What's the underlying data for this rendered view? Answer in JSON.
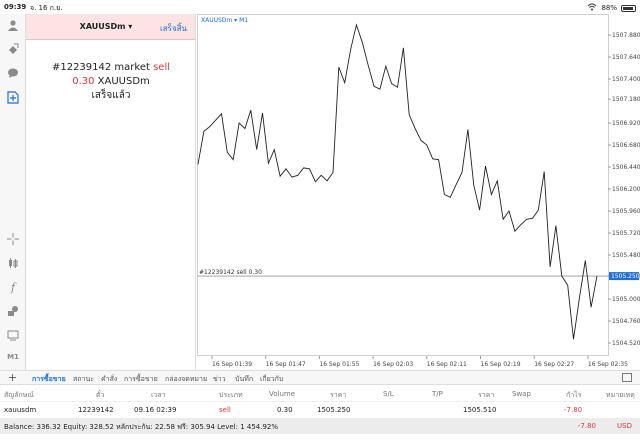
{
  "status_bar": {
    "time": "09:39",
    "date": "จ. 16 ก.ย.",
    "battery": "88%"
  },
  "colors": {
    "accent": "#1f6fd6",
    "sell": "#d23a3a",
    "chart_line": "#222222",
    "order_line": "#999999"
  },
  "left_toolbar": {
    "top_icons": [
      "user-icon",
      "account-icon",
      "chat-icon",
      "new-order-icon"
    ],
    "bottom_icons": [
      "crosshair-icon",
      "candles-icon",
      "indicators-icon",
      "objects-icon",
      "chart-settings-icon"
    ],
    "timeframe": "M1"
  },
  "order_panel": {
    "symbol": "XAUUSDm ▾",
    "done_label": "เสร็จสิ้น",
    "result_line1_prefix": "#12239142 market ",
    "result_line1_type": "sell",
    "result_line2_volume": "0.30",
    "result_line2_symbol": " XAUUSDm",
    "result_line3": "เสร็จแล้ว"
  },
  "chart_data": {
    "type": "line",
    "title": "XAUUSDm ▾ M1",
    "x_labels": [
      "16 Sep 01:39",
      "16 Sep 01:47",
      "16 Sep 01:55",
      "16 Sep 02:03",
      "16 Sep 02:11",
      "16 Sep 02:19",
      "16 Sep 02:27",
      "16 Sep 02:35"
    ],
    "y_ticks": [
      "1507.880",
      "1507.640",
      "1507.400",
      "1507.180",
      "1506.920",
      "1506.680",
      "1506.440",
      "1506.200",
      "1505.960",
      "1505.720",
      "1505.480",
      "1505.250",
      "1505.000",
      "1504.760",
      "1504.520"
    ],
    "ylim": [
      1504.4,
      1508.0
    ],
    "order_line": {
      "label": "#12239142 sell 0.30",
      "price": 1505.25,
      "price_label": "1505.250"
    },
    "values": [
      1506.47,
      1506.83,
      1506.88,
      1506.95,
      1507.02,
      1506.6,
      1506.52,
      1506.92,
      1506.86,
      1507.06,
      1506.63,
      1507.03,
      1506.48,
      1506.63,
      1506.34,
      1506.42,
      1506.33,
      1506.35,
      1506.43,
      1506.42,
      1506.28,
      1506.35,
      1506.29,
      1506.38,
      1507.53,
      1507.36,
      1507.72,
      1507.99,
      1507.8,
      1507.55,
      1507.32,
      1507.29,
      1507.54,
      1507.35,
      1507.31,
      1507.74,
      1507.01,
      1506.86,
      1506.73,
      1506.68,
      1506.53,
      1506.52,
      1506.14,
      1506.11,
      1506.25,
      1506.38,
      1506.85,
      1506.24,
      1505.97,
      1506.45,
      1506.14,
      1506.29,
      1505.87,
      1505.96,
      1505.74,
      1505.81,
      1505.87,
      1505.88,
      1505.97,
      1506.39,
      1505.35,
      1505.8,
      1505.25,
      1505.15,
      1504.56,
      1505.01,
      1505.42,
      1504.91,
      1505.25
    ]
  },
  "tabs": {
    "add_label": "+",
    "items": [
      "การซื้อขาย",
      "สถานะ",
      "คำสั่ง",
      "การซื้อขาย",
      "กล่องจดหมาย",
      "ข่าว",
      "บันทึก",
      "เกี่ยวกับ"
    ],
    "active_index": 0
  },
  "table": {
    "headers": [
      "สัญลักษณ์",
      "ตั๋ว",
      "เวลา",
      "ประเภท",
      "Volume",
      "ราคา",
      "S/L",
      "T/P",
      "ราคา",
      "Swap",
      "กำไร",
      "หมายเหตุ"
    ],
    "rows": [
      [
        "xauusdm",
        "12239142",
        "09.16 02:39",
        "sell",
        "0.30",
        "1505.250",
        "",
        "",
        "1505.510",
        "",
        "-7.80",
        ""
      ]
    ]
  },
  "balance": {
    "text": "Balance: 336.32 Equity: 328.52 หลักประกัน: 22.58 ฟรี: 305.94 Level: 1 454.92%",
    "profit": "-7.80",
    "currency": "USD"
  }
}
